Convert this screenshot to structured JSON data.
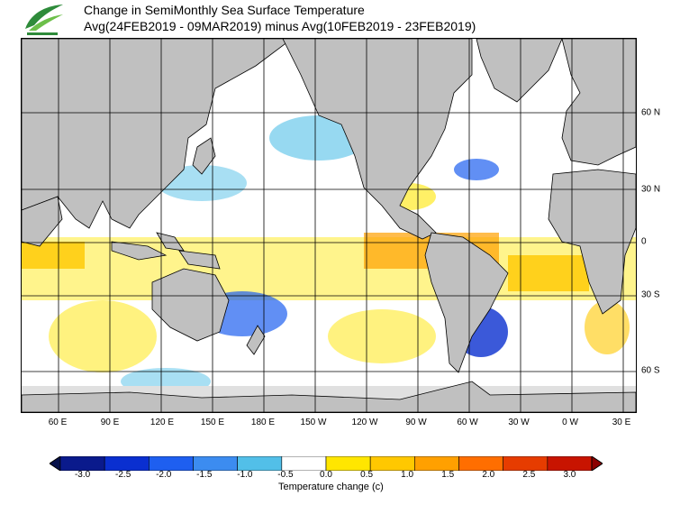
{
  "header": {
    "title_line1": "Change in SemiMonthly Sea Surface Temperature",
    "title_line2": "Avg(24FEB2019 - 09MAR2019) minus Avg(10FEB2019 - 23FEB2019)",
    "logo_icon": "leaf-logo-icon",
    "logo_color": "#2e8b3a"
  },
  "axes": {
    "lon_labels": [
      "60 E",
      "90 E",
      "120 E",
      "150 E",
      "180 E",
      "150 W",
      "120 W",
      "90 W",
      "60 W",
      "30 W",
      "0 W",
      "30 E"
    ],
    "lat_labels": [
      "60 N",
      "30 N",
      "0",
      "30 S",
      "60 S"
    ]
  },
  "colorbar": {
    "ticks": [
      "-3.0",
      "-2.5",
      "-2.0",
      "-1.5",
      "-1.0",
      "-0.5",
      "0.0",
      "0.5",
      "1.0",
      "1.5",
      "2.0",
      "2.5",
      "3.0"
    ],
    "colors": [
      "#0a1a8c",
      "#0a2fd0",
      "#1e5ff0",
      "#3c8cf0",
      "#52bfe8",
      "#ffffff",
      "#ffe600",
      "#ffc800",
      "#ffa000",
      "#ff6e00",
      "#e63c00",
      "#c81400"
    ],
    "under_color": "#06104a",
    "over_color": "#8c0000",
    "label": "Temperature change  (c)"
  },
  "colors": {
    "land": "#c0c0c0",
    "land_outline": "#000000",
    "ice": "#e0e0e0",
    "grid": "#000000"
  }
}
